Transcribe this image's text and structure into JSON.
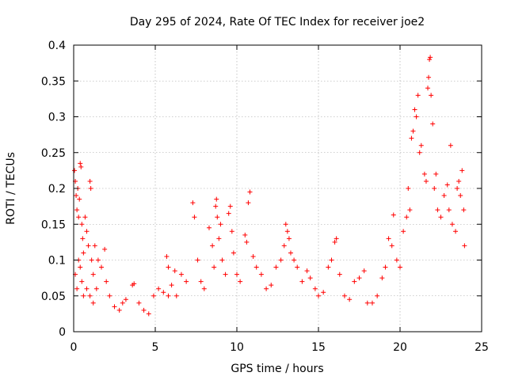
{
  "chart_data": {
    "type": "scatter",
    "title": "Day 295 of 2024, Rate Of TEC Index for receiver joe2",
    "xlabel": "GPS time / hours",
    "ylabel": "ROTI / TECUs",
    "xlim": [
      0,
      25
    ],
    "ylim": [
      0,
      0.4
    ],
    "xticks": [
      0,
      5,
      10,
      15,
      20,
      25
    ],
    "yticks": [
      0,
      0.05,
      0.1,
      0.15,
      0.2,
      0.25,
      0.3,
      0.35,
      0.4
    ],
    "xtick_labels": [
      "0",
      "5",
      "10",
      "15",
      "20",
      "25"
    ],
    "ytick_labels": [
      "0",
      "0.05",
      "0.1",
      "0.15",
      "0.2",
      "0.25",
      "0.3",
      "0.35",
      "0.4"
    ],
    "grid": true,
    "marker": "+",
    "color": "#ff0000",
    "series": [
      {
        "name": "ROTI",
        "points": [
          [
            0.05,
            0.225
          ],
          [
            0.1,
            0.21
          ],
          [
            0.15,
            0.19
          ],
          [
            0.2,
            0.17
          ],
          [
            0.25,
            0.2
          ],
          [
            0.3,
            0.16
          ],
          [
            0.35,
            0.185
          ],
          [
            0.4,
            0.235
          ],
          [
            0.45,
            0.23
          ],
          [
            0.5,
            0.15
          ],
          [
            0.55,
            0.13
          ],
          [
            0.6,
            0.11
          ],
          [
            0.7,
            0.16
          ],
          [
            0.8,
            0.14
          ],
          [
            0.9,
            0.12
          ],
          [
            1.0,
            0.21
          ],
          [
            1.05,
            0.2
          ],
          [
            1.1,
            0.1
          ],
          [
            1.2,
            0.08
          ],
          [
            1.3,
            0.12
          ],
          [
            1.5,
            0.1
          ],
          [
            1.7,
            0.09
          ],
          [
            1.9,
            0.115
          ],
          [
            2.0,
            0.07
          ],
          [
            2.2,
            0.05
          ],
          [
            0.1,
            0.08
          ],
          [
            0.2,
            0.06
          ],
          [
            0.3,
            0.1
          ],
          [
            0.4,
            0.09
          ],
          [
            0.5,
            0.07
          ],
          [
            0.6,
            0.05
          ],
          [
            0.8,
            0.06
          ],
          [
            1.0,
            0.05
          ],
          [
            1.2,
            0.04
          ],
          [
            1.4,
            0.06
          ],
          [
            2.5,
            0.035
          ],
          [
            2.8,
            0.03
          ],
          [
            3.0,
            0.04
          ],
          [
            3.2,
            0.045
          ],
          [
            3.6,
            0.065
          ],
          [
            3.7,
            0.067
          ],
          [
            4.0,
            0.04
          ],
          [
            4.3,
            0.03
          ],
          [
            4.6,
            0.025
          ],
          [
            4.9,
            0.05
          ],
          [
            5.2,
            0.06
          ],
          [
            5.5,
            0.055
          ],
          [
            5.8,
            0.05
          ],
          [
            6.0,
            0.065
          ],
          [
            6.3,
            0.05
          ],
          [
            5.7,
            0.105
          ],
          [
            5.8,
            0.09
          ],
          [
            6.2,
            0.085
          ],
          [
            6.6,
            0.08
          ],
          [
            6.9,
            0.07
          ],
          [
            7.3,
            0.18
          ],
          [
            7.4,
            0.16
          ],
          [
            7.6,
            0.1
          ],
          [
            7.8,
            0.07
          ],
          [
            8.0,
            0.06
          ],
          [
            8.3,
            0.145
          ],
          [
            8.5,
            0.12
          ],
          [
            8.6,
            0.09
          ],
          [
            8.7,
            0.175
          ],
          [
            8.75,
            0.185
          ],
          [
            8.8,
            0.16
          ],
          [
            8.9,
            0.13
          ],
          [
            9.0,
            0.15
          ],
          [
            9.1,
            0.1
          ],
          [
            9.3,
            0.08
          ],
          [
            9.5,
            0.165
          ],
          [
            9.6,
            0.175
          ],
          [
            9.7,
            0.14
          ],
          [
            9.8,
            0.11
          ],
          [
            10.0,
            0.08
          ],
          [
            10.2,
            0.07
          ],
          [
            10.5,
            0.135
          ],
          [
            10.6,
            0.125
          ],
          [
            10.7,
            0.18
          ],
          [
            10.8,
            0.195
          ],
          [
            11.0,
            0.105
          ],
          [
            11.2,
            0.09
          ],
          [
            11.5,
            0.08
          ],
          [
            11.8,
            0.06
          ],
          [
            12.1,
            0.065
          ],
          [
            12.4,
            0.09
          ],
          [
            12.7,
            0.1
          ],
          [
            12.9,
            0.12
          ],
          [
            13.0,
            0.15
          ],
          [
            13.1,
            0.14
          ],
          [
            13.2,
            0.13
          ],
          [
            13.3,
            0.11
          ],
          [
            13.5,
            0.1
          ],
          [
            13.7,
            0.09
          ],
          [
            14.0,
            0.07
          ],
          [
            14.3,
            0.085
          ],
          [
            14.5,
            0.075
          ],
          [
            14.8,
            0.06
          ],
          [
            15.0,
            0.05
          ],
          [
            15.3,
            0.055
          ],
          [
            15.6,
            0.09
          ],
          [
            15.8,
            0.1
          ],
          [
            16.0,
            0.125
          ],
          [
            16.1,
            0.13
          ],
          [
            16.3,
            0.08
          ],
          [
            16.6,
            0.05
          ],
          [
            16.9,
            0.045
          ],
          [
            17.2,
            0.07
          ],
          [
            17.5,
            0.075
          ],
          [
            17.8,
            0.085
          ],
          [
            18.0,
            0.04
          ],
          [
            18.3,
            0.04
          ],
          [
            18.6,
            0.05
          ],
          [
            18.9,
            0.075
          ],
          [
            19.1,
            0.09
          ],
          [
            19.3,
            0.13
          ],
          [
            19.5,
            0.12
          ],
          [
            19.6,
            0.163
          ],
          [
            19.8,
            0.1
          ],
          [
            20.0,
            0.09
          ],
          [
            20.2,
            0.14
          ],
          [
            20.4,
            0.16
          ],
          [
            20.5,
            0.2
          ],
          [
            20.6,
            0.17
          ],
          [
            20.7,
            0.27
          ],
          [
            20.8,
            0.28
          ],
          [
            20.9,
            0.31
          ],
          [
            21.0,
            0.3
          ],
          [
            21.1,
            0.33
          ],
          [
            21.2,
            0.25
          ],
          [
            21.3,
            0.26
          ],
          [
            21.5,
            0.22
          ],
          [
            21.6,
            0.21
          ],
          [
            21.7,
            0.34
          ],
          [
            21.75,
            0.355
          ],
          [
            21.8,
            0.38
          ],
          [
            21.85,
            0.383
          ],
          [
            21.9,
            0.33
          ],
          [
            22.0,
            0.29
          ],
          [
            22.1,
            0.2
          ],
          [
            22.2,
            0.22
          ],
          [
            22.3,
            0.17
          ],
          [
            22.5,
            0.16
          ],
          [
            22.7,
            0.19
          ],
          [
            22.9,
            0.205
          ],
          [
            23.0,
            0.17
          ],
          [
            23.1,
            0.26
          ],
          [
            23.2,
            0.15
          ],
          [
            23.4,
            0.14
          ],
          [
            23.5,
            0.2
          ],
          [
            23.6,
            0.21
          ],
          [
            23.7,
            0.19
          ],
          [
            23.8,
            0.225
          ],
          [
            23.9,
            0.17
          ],
          [
            23.95,
            0.12
          ]
        ]
      }
    ]
  }
}
